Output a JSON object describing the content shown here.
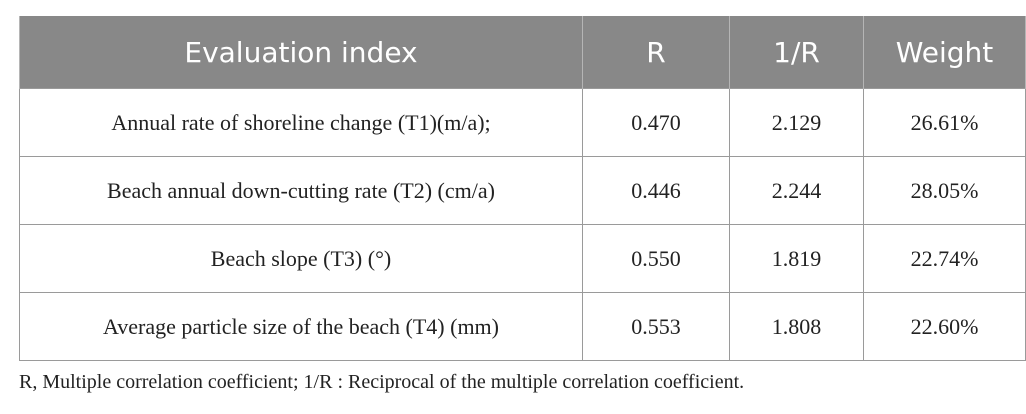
{
  "table": {
    "headers": [
      "Evaluation index",
      "R",
      "1/R",
      "Weight"
    ],
    "rows": [
      [
        "Annual rate of shoreline change (T1)(m/a);",
        "0.470",
        "2.129",
        "26.61%"
      ],
      [
        "Beach annual down-cutting rate (T2) (cm/a)",
        "0.446",
        "2.244",
        "28.05%"
      ],
      [
        "Beach slope (T3) (°)",
        "0.550",
        "1.819",
        "22.74%"
      ],
      [
        "Average particle size of the beach (T4) (mm)",
        "0.553",
        "1.808",
        "22.60%"
      ]
    ],
    "header_bg": "#888888",
    "header_text_color": "#ffffff",
    "border_color": "#9a9a9a"
  },
  "footnote": "R, Multiple correlation coefficient; 1/R : Reciprocal of the multiple correlation coefficient."
}
